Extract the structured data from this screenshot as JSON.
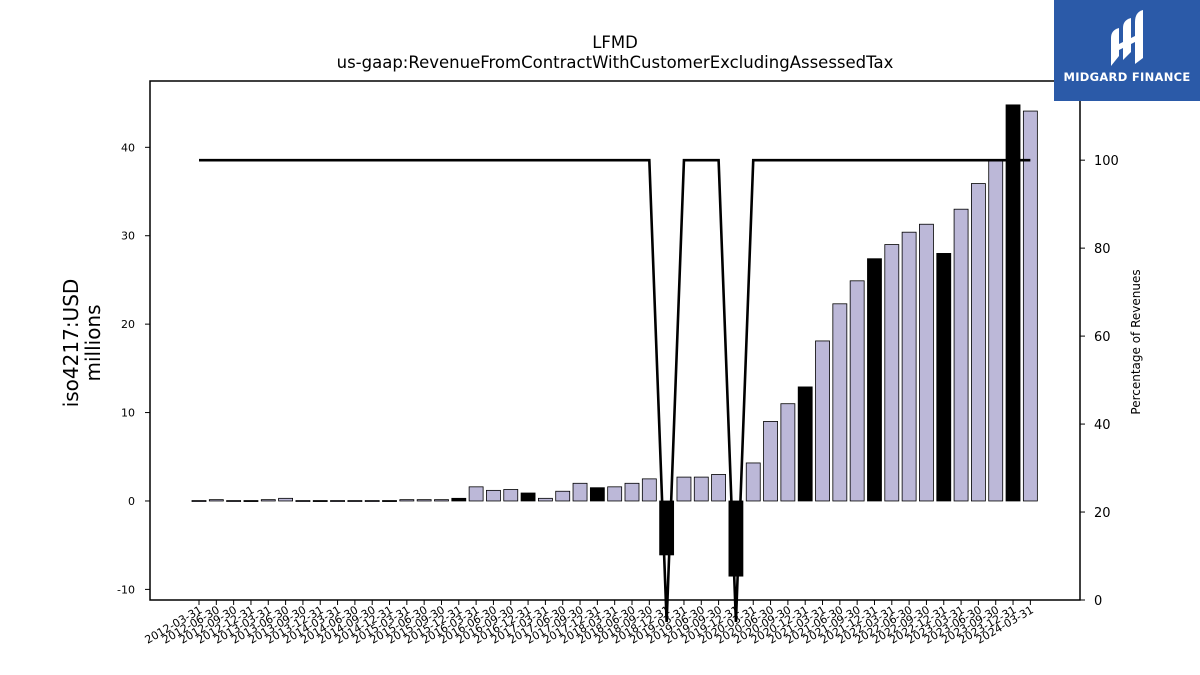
{
  "chart_data": {
    "type": "bar",
    "title": "LFMD",
    "subtitle": "us-gaap:RevenueFromContractWithCustomerExcludingAssessedTax",
    "ylabel": "iso4217:USD\nmillions",
    "y2label": "Percentage of Revenues",
    "ylim": [
      -11.2,
      47.5
    ],
    "y2lim": [
      0,
      118
    ],
    "yticks": [
      -10,
      0,
      10,
      20,
      30,
      40
    ],
    "y2ticks": [
      0,
      20,
      40,
      60,
      80,
      100
    ],
    "grid": false,
    "categories": [
      "2012-03-31",
      "2012-06-30",
      "2012-09-30",
      "2012-12-31",
      "2013-03-31",
      "2013-06-30",
      "2013-09-30",
      "2013-12-31",
      "2014-03-31",
      "2014-06-30",
      "2014-09-30",
      "2014-12-31",
      "2015-03-31",
      "2015-06-30",
      "2015-09-30",
      "2015-12-31",
      "2016-03-31",
      "2016-06-30",
      "2016-09-30",
      "2016-12-31",
      "2017-03-31",
      "2017-06-30",
      "2017-09-30",
      "2017-12-31",
      "2018-03-31",
      "2018-06-30",
      "2018-09-30",
      "2018-12-31",
      "2019-03-31",
      "2019-06-30",
      "2019-09-30",
      "2019-12-31",
      "2020-03-31",
      "2020-06-30",
      "2020-09-30",
      "2020-12-31",
      "2021-03-31",
      "2021-06-30",
      "2021-09-30",
      "2021-12-31",
      "2022-03-31",
      "2022-06-30",
      "2022-09-30",
      "2022-12-31",
      "2023-03-31",
      "2023-06-30",
      "2023-09-30",
      "2023-12-31",
      "2024-03-31"
    ],
    "series": [
      {
        "values": [
          0.05,
          0.15,
          0.05,
          0.05,
          0.15,
          0.3,
          0.05,
          0.05,
          0.05,
          0.05,
          0.05,
          0.05,
          0.15,
          0.15,
          0.15,
          0.3,
          1.6,
          1.2,
          1.3,
          0.9,
          0.3,
          1.1,
          2.0,
          1.5,
          1.6,
          2.0,
          2.5,
          -6.1,
          2.7,
          2.7,
          3.0,
          -8.5,
          4.3,
          9.0,
          11.0,
          12.9,
          18.1,
          22.3,
          24.9,
          27.4,
          29.0,
          30.4,
          31.3,
          28.0,
          33.0,
          35.9,
          38.6,
          44.8,
          44.1
        ],
        "annual": [
          false,
          false,
          false,
          true,
          false,
          false,
          false,
          true,
          false,
          false,
          false,
          true,
          false,
          false,
          false,
          true,
          false,
          false,
          false,
          true,
          false,
          false,
          false,
          true,
          false,
          false,
          false,
          true,
          false,
          false,
          false,
          true,
          false,
          false,
          false,
          true,
          false,
          false,
          false,
          true,
          false,
          false,
          false,
          true,
          false,
          false,
          false,
          true,
          false
        ]
      },
      {
        "values": [
          100,
          100,
          100,
          100,
          100,
          100,
          100,
          100,
          100,
          100,
          100,
          100,
          100,
          100,
          100,
          100,
          100,
          100,
          100,
          100,
          100,
          100,
          100,
          100,
          100,
          100,
          100,
          -5,
          100,
          100,
          100,
          -5,
          100,
          100,
          100,
          100,
          100,
          100,
          100,
          100,
          100,
          100,
          100,
          100,
          100,
          100,
          100,
          100,
          100
        ],
        "axis": "right"
      }
    ],
    "colors": {
      "quarter_bar": "#bcb8d8",
      "annual_bar": "#000000",
      "line": "#000000"
    }
  },
  "logo": {
    "text": "MIDGARD FINANCE",
    "bg": "#2b5aa8"
  }
}
